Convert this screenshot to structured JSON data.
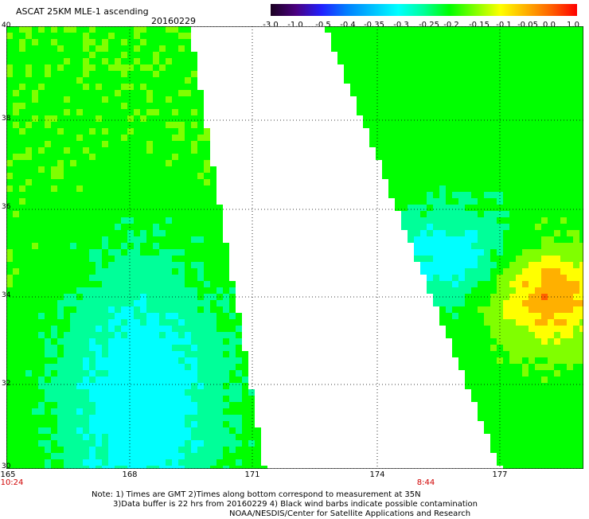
{
  "header": {
    "title": "ASCAT 25KM MLE-1 ascending",
    "date": "20160229"
  },
  "colorbar": {
    "labels": [
      "-3.0",
      "-1.0",
      "-0.5",
      "-0.4",
      "-0.35",
      "-0.3",
      "-0.25",
      "-0.2",
      "-0.15",
      "-0.1",
      "-0.05",
      "0.0",
      "1.0"
    ],
    "colors": [
      "#1a0020",
      "#4a0080",
      "#2020ff",
      "#0080ff",
      "#00c0ff",
      "#00ffff",
      "#00ff99",
      "#00ff00",
      "#80ff00",
      "#ffff00",
      "#ffb000",
      "#ff6000",
      "#ff0000"
    ]
  },
  "map": {
    "lon_range": [
      165,
      179.5
    ],
    "lat_range": [
      30,
      40
    ],
    "lon_ticks": [
      "165",
      "168",
      "171",
      "174",
      "177"
    ],
    "lat_ticks": [
      "40",
      "38",
      "36",
      "34",
      "32",
      "30"
    ],
    "swaths": [
      {
        "time": "10:24",
        "time_lon": 165
      },
      {
        "time": "8:44",
        "time_lon": 175.4
      }
    ]
  },
  "notes": [
    "Note: 1) Times are GMT 2)Times along bottom correspond to measurement at 35N",
    "3)Data buffer is 22 hrs from 20160229 4) Black wind barbs indicate possible contamination",
    "NOAA/NESDIS/Center for Satellite Applications and Research"
  ]
}
